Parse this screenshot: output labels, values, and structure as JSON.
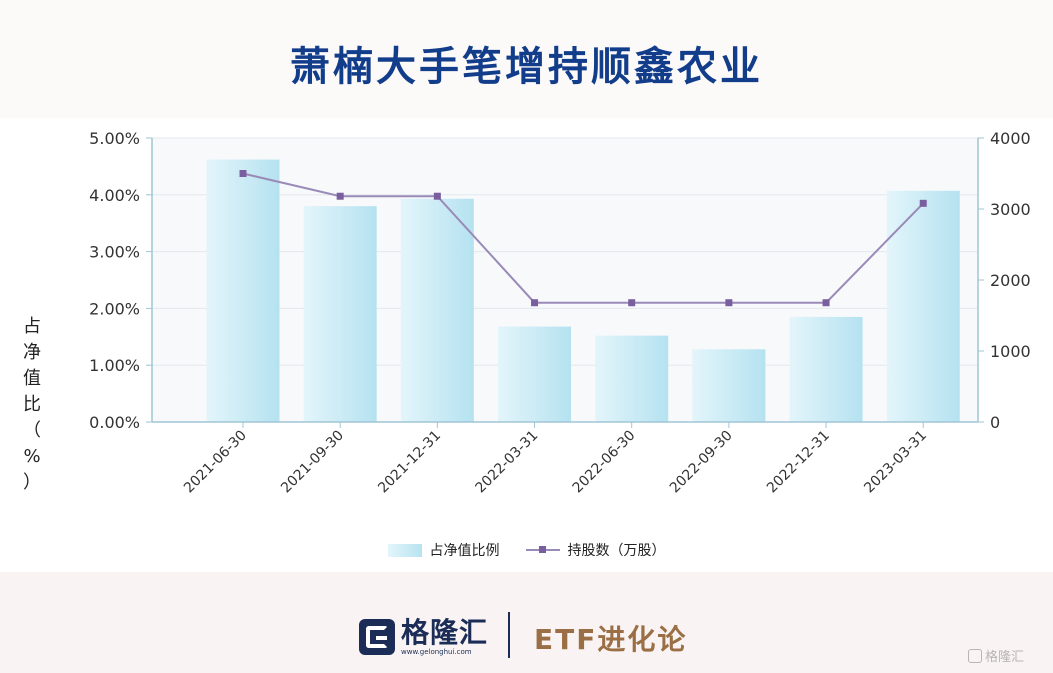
{
  "header": {
    "title": "萧楠大手笔增持顺鑫农业"
  },
  "chart_data": {
    "type": "bar",
    "categories": [
      "2021-06-30",
      "2021-09-30",
      "2021-12-31",
      "2022-03-31",
      "2022-06-30",
      "2022-09-30",
      "2022-12-31",
      "2023-03-31"
    ],
    "series": [
      {
        "name": "占净值比例",
        "type": "bar",
        "axis": "left",
        "values": [
          4.62,
          3.8,
          3.93,
          1.68,
          1.52,
          1.28,
          1.85,
          4.07
        ]
      },
      {
        "name": "持股数（万股）",
        "type": "line",
        "axis": "right",
        "values": [
          3500,
          3180,
          3180,
          1680,
          1680,
          1680,
          1680,
          3080
        ]
      }
    ],
    "ylabel": "占净值比（%）",
    "ylim": [
      0,
      5
    ],
    "y2lim": [
      0,
      4000
    ],
    "yticks": [
      "0.00%",
      "1.00%",
      "2.00%",
      "3.00%",
      "4.00%",
      "5.00%"
    ],
    "y2ticks": [
      "0",
      "1000",
      "2000",
      "3000",
      "4000"
    ],
    "legend_position": "bottom",
    "grid": true,
    "colors": {
      "bar_light": "#e3f5fb",
      "bar_dark": "#b5e2f0",
      "line": "#9a8ab8",
      "marker": "#7a5f9e",
      "axis": "#9fc6d6",
      "plot_bg": "#f7f9fb"
    }
  },
  "footer": {
    "logo_text": "格隆汇",
    "logo_url": "www.gelonghui.com",
    "brand": "ETF进化论",
    "watermark": "格隆汇"
  }
}
